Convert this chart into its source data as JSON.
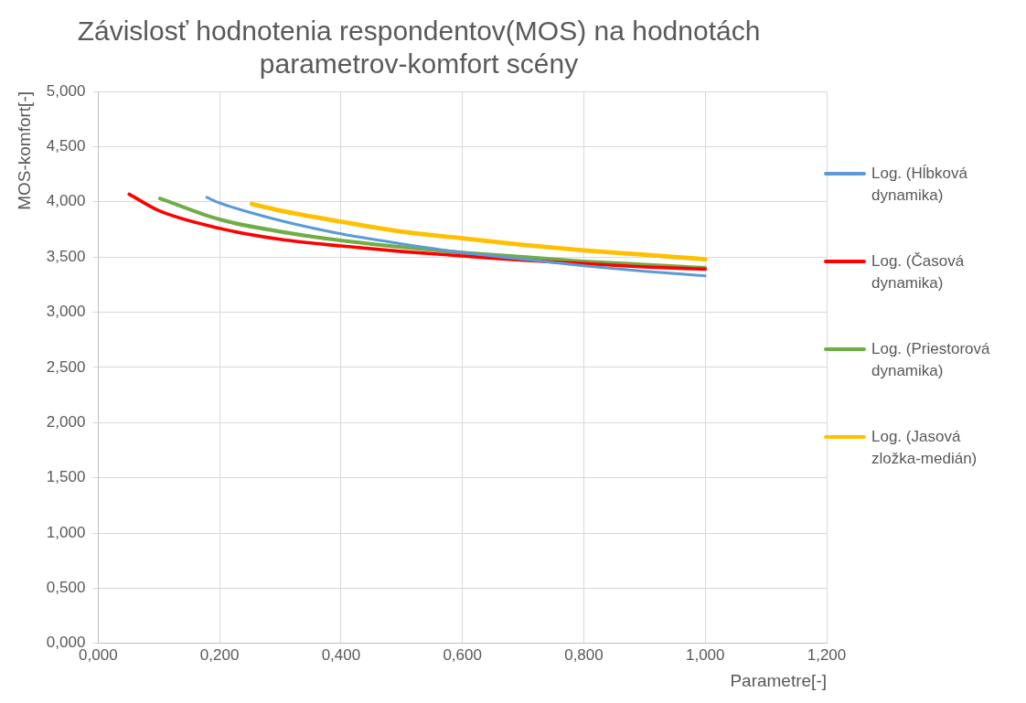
{
  "chart_data": {
    "type": "line",
    "title": "Závislosť hodnotenia respondentov(MOS) na hodnotách parametrov-komfort scény",
    "xlabel": "Parametre[-]",
    "ylabel": "MOS-komfort[-]",
    "xlim": [
      0,
      1.2
    ],
    "xticks": [
      {
        "value": 0,
        "label": "0,000"
      },
      {
        "value": 0.2,
        "label": "0,200"
      },
      {
        "value": 0.4,
        "label": "0,400"
      },
      {
        "value": 0.6,
        "label": "0,600"
      },
      {
        "value": 0.8,
        "label": "0,800"
      },
      {
        "value": 1,
        "label": "1,000"
      },
      {
        "value": 1.2,
        "label": "1,200"
      }
    ],
    "ylim": [
      0,
      5
    ],
    "yticks": [
      {
        "value": 0,
        "label": "0,000"
      },
      {
        "value": 0.5,
        "label": "0,500"
      },
      {
        "value": 1,
        "label": "1,000"
      },
      {
        "value": 1.5,
        "label": "1,500"
      },
      {
        "value": 2,
        "label": "2,000"
      },
      {
        "value": 2.5,
        "label": "2,500"
      },
      {
        "value": 3,
        "label": "3,000"
      },
      {
        "value": 3.5,
        "label": "3,500"
      },
      {
        "value": 4,
        "label": "4,000"
      },
      {
        "value": 4.5,
        "label": "4,500"
      },
      {
        "value": 5,
        "label": "5,000"
      }
    ],
    "grid": true,
    "legend": "right",
    "marker": "none",
    "line_style": "solid",
    "series": [
      {
        "name": "Log. (Hĺbková dynamika)",
        "color": "#5b9bd5",
        "x": [
          0.179,
          0.2,
          0.3,
          0.4,
          0.5,
          0.6,
          0.7,
          0.8,
          0.9,
          1.0
        ],
        "values": [
          4.04,
          3.99,
          3.83,
          3.71,
          3.62,
          3.54,
          3.48,
          3.42,
          3.37,
          3.33
        ]
      },
      {
        "name": "Log. (Časová dynamika)",
        "color": "#ff0000",
        "x": [
          0.051,
          0.1,
          0.2,
          0.3,
          0.4,
          0.5,
          0.6,
          0.7,
          0.8,
          0.9,
          1.0
        ],
        "values": [
          4.07,
          3.92,
          3.76,
          3.66,
          3.6,
          3.55,
          3.51,
          3.47,
          3.44,
          3.41,
          3.39
        ]
      },
      {
        "name": "Log. (Priestorová dynamika)",
        "color": "#70ad47",
        "x": [
          0.102,
          0.2,
          0.3,
          0.4,
          0.5,
          0.6,
          0.7,
          0.8,
          0.9,
          1.0
        ],
        "values": [
          4.03,
          3.84,
          3.73,
          3.65,
          3.59,
          3.54,
          3.5,
          3.46,
          3.43,
          3.4
        ]
      },
      {
        "name": "Log. (Jasová zložka-medián)",
        "color": "#ffc000",
        "x": [
          0.253,
          0.3,
          0.4,
          0.5,
          0.6,
          0.7,
          0.8,
          0.9,
          1.0
        ],
        "values": [
          3.98,
          3.92,
          3.82,
          3.73,
          3.67,
          3.61,
          3.56,
          3.52,
          3.48
        ]
      }
    ]
  }
}
